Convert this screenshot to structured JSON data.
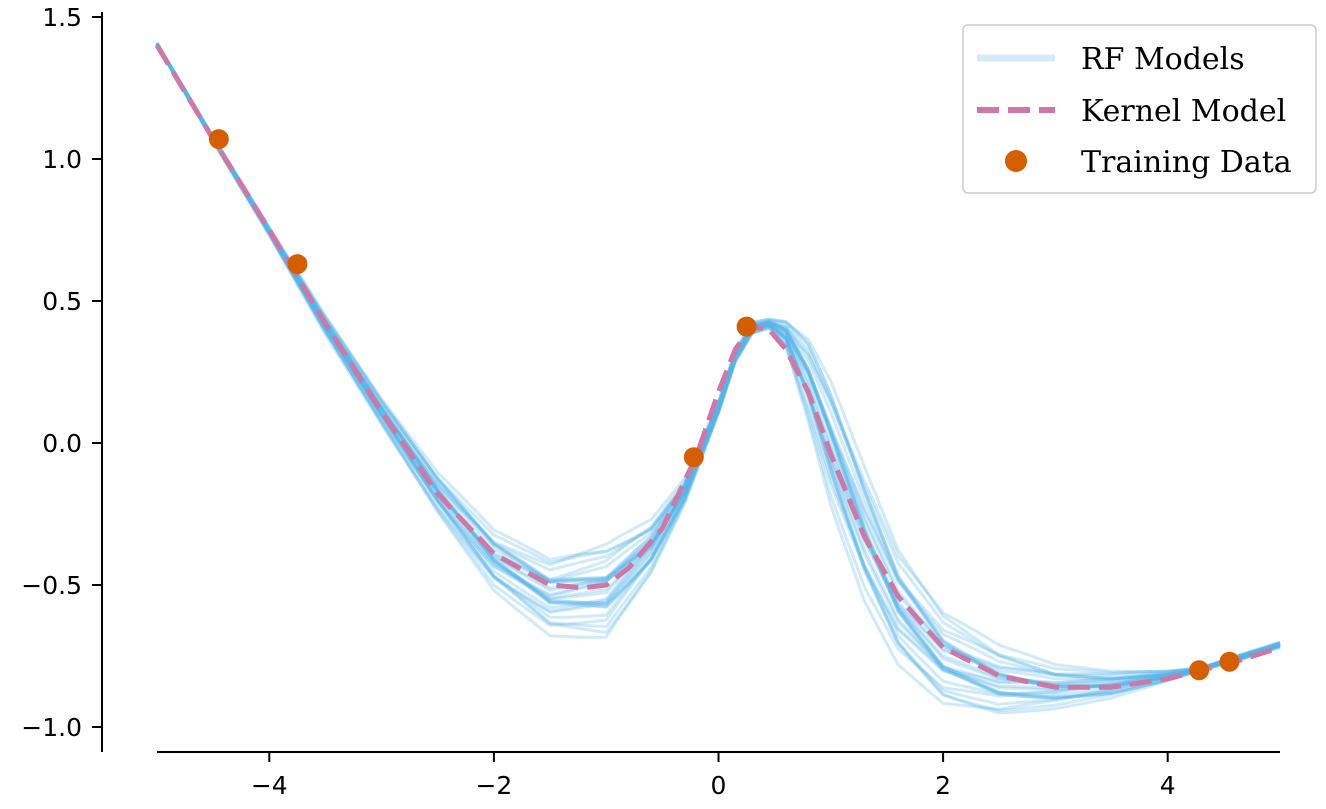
{
  "chart_data": {
    "type": "line",
    "title": "",
    "xlabel": "",
    "ylabel": "",
    "xlim": [
      -5,
      5
    ],
    "ylim": [
      -1.05,
      1.5
    ],
    "grid": false,
    "legend_position": "top-right",
    "x_ticks": [
      {
        "value": -4,
        "label": "−4"
      },
      {
        "value": -2,
        "label": "−2"
      },
      {
        "value": 0,
        "label": "0"
      },
      {
        "value": 2,
        "label": "2"
      },
      {
        "value": 4,
        "label": "4"
      }
    ],
    "y_ticks": [
      {
        "value": -1.0,
        "label": "−1.0"
      },
      {
        "value": -0.5,
        "label": "−0.5"
      },
      {
        "value": 0.0,
        "label": "0.0"
      },
      {
        "value": 0.5,
        "label": "0.5"
      },
      {
        "value": 1.0,
        "label": "1.0"
      },
      {
        "value": 1.5,
        "label": "1.5"
      }
    ],
    "series": [
      {
        "name": "RF Models",
        "style": "solid-band",
        "color": "#56b4e9",
        "legend_color": "#d6eaf8",
        "x": [
          -5.0,
          -4.5,
          -4.0,
          -3.5,
          -3.0,
          -2.5,
          -2.0,
          -1.5,
          -1.0,
          -0.6,
          -0.3,
          0.0,
          0.15,
          0.3,
          0.45,
          0.6,
          0.8,
          1.0,
          1.3,
          1.6,
          2.0,
          2.5,
          3.0,
          3.5,
          4.0,
          4.3,
          4.6,
          5.0
        ],
        "lower": [
          1.4,
          1.06,
          0.73,
          0.38,
          0.06,
          -0.25,
          -0.52,
          -0.68,
          -0.7,
          -0.47,
          -0.22,
          0.1,
          0.28,
          0.38,
          0.4,
          0.33,
          0.05,
          -0.25,
          -0.58,
          -0.8,
          -0.94,
          -0.97,
          -0.94,
          -0.9,
          -0.84,
          -0.8,
          -0.77,
          -0.72
        ],
        "upper": [
          1.41,
          1.08,
          0.76,
          0.45,
          0.16,
          -0.1,
          -0.3,
          -0.39,
          -0.33,
          -0.26,
          -0.12,
          0.15,
          0.33,
          0.43,
          0.44,
          0.44,
          0.4,
          0.26,
          -0.05,
          -0.35,
          -0.58,
          -0.71,
          -0.78,
          -0.8,
          -0.8,
          -0.79,
          -0.75,
          -0.7
        ]
      },
      {
        "name": "Kernel Model",
        "style": "dashed",
        "color": "#cc79a7",
        "x": [
          -5.0,
          -4.5,
          -4.0,
          -3.5,
          -3.0,
          -2.5,
          -2.0,
          -1.5,
          -1.2,
          -1.0,
          -0.8,
          -0.5,
          -0.2,
          0.0,
          0.15,
          0.3,
          0.45,
          0.6,
          0.8,
          1.0,
          1.3,
          1.6,
          2.0,
          2.5,
          3.0,
          3.5,
          4.0,
          4.3,
          4.6,
          5.0
        ],
        "y": [
          1.4,
          1.07,
          0.75,
          0.42,
          0.11,
          -0.18,
          -0.39,
          -0.5,
          -0.51,
          -0.5,
          -0.44,
          -0.3,
          -0.05,
          0.18,
          0.33,
          0.41,
          0.4,
          0.33,
          0.18,
          -0.04,
          -0.33,
          -0.54,
          -0.72,
          -0.82,
          -0.86,
          -0.86,
          -0.83,
          -0.8,
          -0.77,
          -0.72
        ]
      },
      {
        "name": "Training Data",
        "style": "scatter",
        "color": "#d55e00",
        "x": [
          -4.45,
          -3.75,
          -0.22,
          0.25,
          4.28,
          4.55
        ],
        "y": [
          1.07,
          0.63,
          -0.05,
          0.41,
          -0.8,
          -0.77
        ]
      }
    ]
  }
}
